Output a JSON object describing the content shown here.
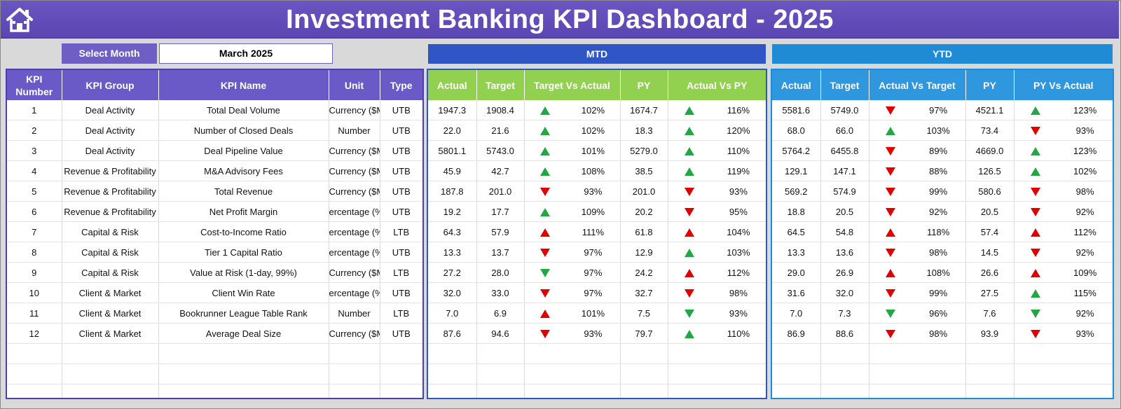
{
  "header": {
    "title": "Investment Banking KPI Dashboard - 2025",
    "home_icon": "home-icon"
  },
  "selector": {
    "label": "Select Month",
    "value": "March 2025"
  },
  "bands": {
    "mtd": "MTD",
    "ytd": "YTD"
  },
  "colors": {
    "header": "#5a45b1",
    "mtd": "#2f56c4",
    "ytd": "#1f8bd6",
    "mtd_head": "#92d050",
    "ytd_head": "#2e97dd",
    "up": "#22a745",
    "down": "#e00000"
  },
  "kpi_columns": [
    "KPI Number",
    "KPI Group",
    "KPI Name",
    "Unit",
    "Type"
  ],
  "mtd_columns": [
    "Actual",
    "Target",
    "Target Vs Actual",
    "PY",
    "Actual Vs PY"
  ],
  "ytd_columns": [
    "Actual",
    "Target",
    "Actual Vs Target",
    "PY",
    "PY Vs Actual"
  ],
  "rows": [
    {
      "num": "1",
      "group": "Deal Activity",
      "name": "Total Deal Volume",
      "unit": "Currency ($M",
      "type": "UTB",
      "mtd": {
        "actual": "1947.3",
        "target": "1908.4",
        "tva_icon": "up-g",
        "tva": "102%",
        "py": "1674.7",
        "avp_icon": "up-g",
        "avp": "116%"
      },
      "ytd": {
        "actual": "5581.6",
        "target": "5749.0",
        "avt_icon": "dn-r",
        "avt": "97%",
        "py": "4521.1",
        "pva_icon": "up-g",
        "pva": "123%"
      }
    },
    {
      "num": "2",
      "group": "Deal Activity",
      "name": "Number of Closed Deals",
      "unit": "Number",
      "type": "UTB",
      "mtd": {
        "actual": "22.0",
        "target": "21.6",
        "tva_icon": "up-g",
        "tva": "102%",
        "py": "18.3",
        "avp_icon": "up-g",
        "avp": "120%"
      },
      "ytd": {
        "actual": "68.0",
        "target": "66.0",
        "avt_icon": "up-g",
        "avt": "103%",
        "py": "73.4",
        "pva_icon": "dn-r",
        "pva": "93%"
      }
    },
    {
      "num": "3",
      "group": "Deal Activity",
      "name": "Deal Pipeline Value",
      "unit": "Currency ($M",
      "type": "UTB",
      "mtd": {
        "actual": "5801.1",
        "target": "5743.0",
        "tva_icon": "up-g",
        "tva": "101%",
        "py": "5279.0",
        "avp_icon": "up-g",
        "avp": "110%"
      },
      "ytd": {
        "actual": "5764.2",
        "target": "6455.8",
        "avt_icon": "dn-r",
        "avt": "89%",
        "py": "4669.0",
        "pva_icon": "up-g",
        "pva": "123%"
      }
    },
    {
      "num": "4",
      "group": "Revenue & Profitability",
      "name": "M&A Advisory Fees",
      "unit": "Currency ($M",
      "type": "UTB",
      "mtd": {
        "actual": "45.9",
        "target": "42.7",
        "tva_icon": "up-g",
        "tva": "108%",
        "py": "38.5",
        "avp_icon": "up-g",
        "avp": "119%"
      },
      "ytd": {
        "actual": "129.1",
        "target": "147.1",
        "avt_icon": "dn-r",
        "avt": "88%",
        "py": "126.5",
        "pva_icon": "up-g",
        "pva": "102%"
      }
    },
    {
      "num": "5",
      "group": "Revenue & Profitability",
      "name": "Total Revenue",
      "unit": "Currency ($M",
      "type": "UTB",
      "mtd": {
        "actual": "187.8",
        "target": "201.0",
        "tva_icon": "dn-r",
        "tva": "93%",
        "py": "201.0",
        "avp_icon": "dn-r",
        "avp": "93%"
      },
      "ytd": {
        "actual": "569.2",
        "target": "574.9",
        "avt_icon": "dn-r",
        "avt": "99%",
        "py": "580.6",
        "pva_icon": "dn-r",
        "pva": "98%"
      }
    },
    {
      "num": "6",
      "group": "Revenue & Profitability",
      "name": "Net Profit Margin",
      "unit": "ercentage (%",
      "type": "UTB",
      "mtd": {
        "actual": "19.2",
        "target": "17.7",
        "tva_icon": "up-g",
        "tva": "109%",
        "py": "20.2",
        "avp_icon": "dn-r",
        "avp": "95%"
      },
      "ytd": {
        "actual": "18.8",
        "target": "20.5",
        "avt_icon": "dn-r",
        "avt": "92%",
        "py": "20.5",
        "pva_icon": "dn-r",
        "pva": "92%"
      }
    },
    {
      "num": "7",
      "group": "Capital & Risk",
      "name": "Cost-to-Income Ratio",
      "unit": "ercentage (%",
      "type": "LTB",
      "mtd": {
        "actual": "64.3",
        "target": "57.9",
        "tva_icon": "up-r",
        "tva": "111%",
        "py": "61.8",
        "avp_icon": "up-r",
        "avp": "104%"
      },
      "ytd": {
        "actual": "64.5",
        "target": "54.8",
        "avt_icon": "up-r",
        "avt": "118%",
        "py": "57.4",
        "pva_icon": "up-r",
        "pva": "112%"
      }
    },
    {
      "num": "8",
      "group": "Capital & Risk",
      "name": "Tier 1 Capital Ratio",
      "unit": "ercentage (%",
      "type": "UTB",
      "mtd": {
        "actual": "13.3",
        "target": "13.7",
        "tva_icon": "dn-r",
        "tva": "97%",
        "py": "12.9",
        "avp_icon": "up-g",
        "avp": "103%"
      },
      "ytd": {
        "actual": "13.3",
        "target": "13.6",
        "avt_icon": "dn-r",
        "avt": "98%",
        "py": "14.5",
        "pva_icon": "dn-r",
        "pva": "92%"
      }
    },
    {
      "num": "9",
      "group": "Capital & Risk",
      "name": "Value at Risk (1-day, 99%)",
      "unit": "Currency ($M",
      "type": "LTB",
      "mtd": {
        "actual": "27.2",
        "target": "28.0",
        "tva_icon": "dn-g",
        "tva": "97%",
        "py": "24.2",
        "avp_icon": "up-r",
        "avp": "112%"
      },
      "ytd": {
        "actual": "29.0",
        "target": "26.9",
        "avt_icon": "up-r",
        "avt": "108%",
        "py": "26.6",
        "pva_icon": "up-r",
        "pva": "109%"
      }
    },
    {
      "num": "10",
      "group": "Client & Market",
      "name": "Client Win Rate",
      "unit": "ercentage (%",
      "type": "UTB",
      "mtd": {
        "actual": "32.0",
        "target": "33.0",
        "tva_icon": "dn-r",
        "tva": "97%",
        "py": "32.7",
        "avp_icon": "dn-r",
        "avp": "98%"
      },
      "ytd": {
        "actual": "31.6",
        "target": "32.0",
        "avt_icon": "dn-r",
        "avt": "99%",
        "py": "27.5",
        "pva_icon": "up-g",
        "pva": "115%"
      }
    },
    {
      "num": "11",
      "group": "Client & Market",
      "name": "Bookrunner League Table Rank",
      "unit": "Number",
      "type": "LTB",
      "mtd": {
        "actual": "7.0",
        "target": "6.9",
        "tva_icon": "up-r",
        "tva": "101%",
        "py": "7.5",
        "avp_icon": "dn-g",
        "avp": "93%"
      },
      "ytd": {
        "actual": "7.0",
        "target": "7.3",
        "avt_icon": "dn-g",
        "avt": "96%",
        "py": "7.6",
        "pva_icon": "dn-g",
        "pva": "92%"
      }
    },
    {
      "num": "12",
      "group": "Client & Market",
      "name": "Average Deal Size",
      "unit": "Currency ($M",
      "type": "UTB",
      "mtd": {
        "actual": "87.6",
        "target": "94.6",
        "tva_icon": "dn-r",
        "tva": "93%",
        "py": "79.7",
        "avp_icon": "up-g",
        "avp": "110%"
      },
      "ytd": {
        "actual": "86.9",
        "target": "88.6",
        "avt_icon": "dn-r",
        "avt": "98%",
        "py": "93.9",
        "pva_icon": "dn-r",
        "pva": "93%"
      }
    }
  ],
  "empty_rows": 3
}
